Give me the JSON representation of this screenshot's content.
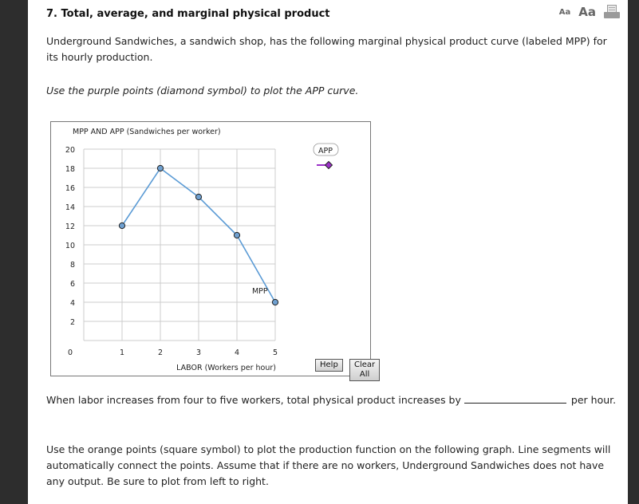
{
  "question": {
    "title": "7.  Total, average, and marginal physical product",
    "font_small_label": "Aa",
    "font_large_label": "Aa",
    "print_icon": "print-icon",
    "intro": "Underground Sandwiches, a sandwich shop, has the following marginal physical product curve (labeled MPP) for its hourly production.",
    "instruction": "Use the purple points (diamond symbol) to plot the APP curve.",
    "fill_in_before": "When labor increases from four to five workers, total physical product increases by",
    "fill_in_value": "",
    "fill_in_after": "per hour.",
    "next_instruction": "Use the orange points (square symbol) to plot the production function on the following graph. Line segments will automatically connect the points. Assume that if there are no workers, Underground Sandwiches does not have any output. Be sure to plot from left to right."
  },
  "graph": {
    "help_label": "Help",
    "clear_all_label": "Clear All",
    "legend_label": "APP",
    "colors": {
      "mpp_line": "#5b9bd5",
      "mpp_point_fill": "#6fa0d0",
      "app_purple": "#9b30c8",
      "grid": "#cccccc"
    }
  },
  "chart_data": {
    "type": "line",
    "title": "",
    "ylabel": "MPP AND APP (Sandwiches per worker)",
    "xlabel": "LABOR (Workers per hour)",
    "x": [
      1,
      2,
      3,
      4,
      5
    ],
    "series": [
      {
        "name": "MPP",
        "values": [
          12,
          18,
          15,
          11,
          4
        ],
        "color": "#5b9bd5",
        "marker": "circle"
      },
      {
        "name": "APP",
        "values": [],
        "color": "#9b30c8",
        "marker": "diamond"
      }
    ],
    "xlim": [
      0,
      5
    ],
    "ylim": [
      0,
      20
    ],
    "xticks": [
      0,
      1,
      2,
      3,
      4,
      5
    ],
    "yticks": [
      2,
      4,
      6,
      8,
      10,
      12,
      14,
      16,
      18,
      20
    ],
    "grid": true,
    "legend_position": "top-right (outside plot area)",
    "annotations": [
      {
        "text": "MPP",
        "x": 4.6,
        "y": 5
      }
    ]
  }
}
